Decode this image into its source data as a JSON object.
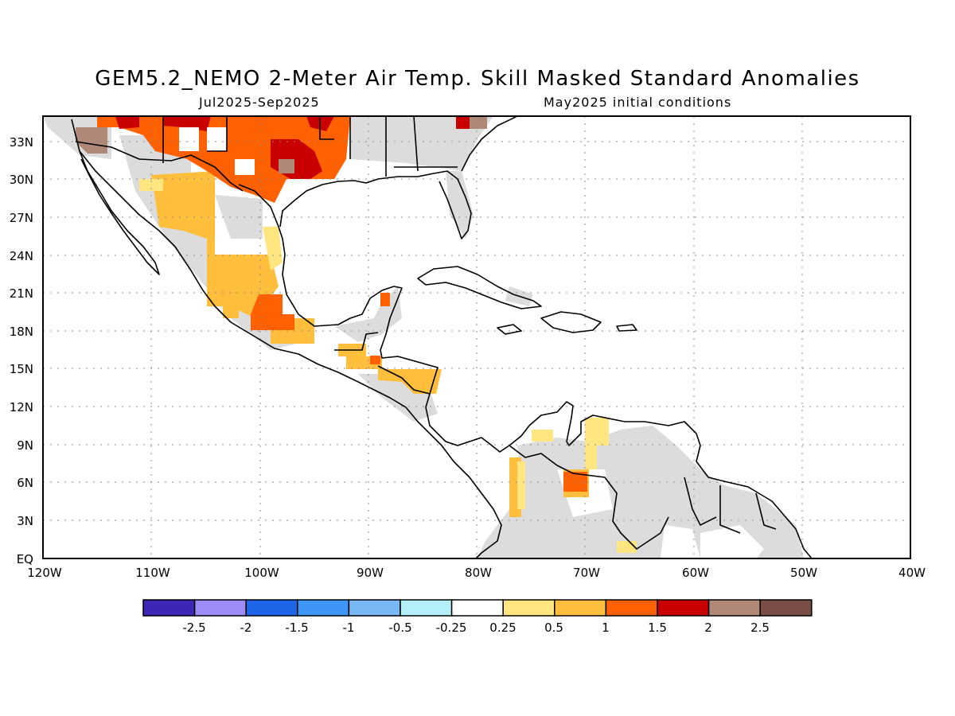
{
  "title": "GEM5.2_NEMO 2-Meter Air Temp. Skill Masked Standard Anomalies",
  "period": "Jul2025-Sep2025",
  "init": "May2025 initial conditions",
  "lat_labels": [
    "33N",
    "30N",
    "27N",
    "24N",
    "21N",
    "18N",
    "15N",
    "12N",
    "9N",
    "6N",
    "3N",
    "EQ"
  ],
  "lon_labels": [
    "120W",
    "110W",
    "100W",
    "90W",
    "80W",
    "70W",
    "60W",
    "50W",
    "40W"
  ],
  "colorbar": {
    "colors": [
      "#3d25b5",
      "#9c8cf7",
      "#1e64e6",
      "#3d96f5",
      "#78b9f5",
      "#b4f0fa",
      "#ffffff",
      "#ffe680",
      "#ffbe3c",
      "#ff6000",
      "#c80000",
      "#b08878",
      "#7a4e46"
    ],
    "labels": [
      "-2.5",
      "-2",
      "-1.5",
      "-1",
      "-0.5",
      "-0.25",
      "0.25",
      "0.5",
      "1",
      "1.5",
      "2",
      "2.5"
    ]
  },
  "regions": [
    {
      "name": "northern-mexico-texas",
      "category": "1-1.5"
    },
    {
      "name": "texas-hotspot",
      "category": "1.5-2"
    },
    {
      "name": "mexico-plateau",
      "category": "0.5-1"
    },
    {
      "name": "yucatan-belize",
      "category": "1-1.5"
    },
    {
      "name": "honduras",
      "category": "0.5-1"
    },
    {
      "name": "venezuela-interior",
      "category": "1-1.5"
    },
    {
      "name": "colombia-pacific",
      "category": "0.25-0.5"
    },
    {
      "name": "masked-no-skill",
      "category": "grey"
    }
  ]
}
